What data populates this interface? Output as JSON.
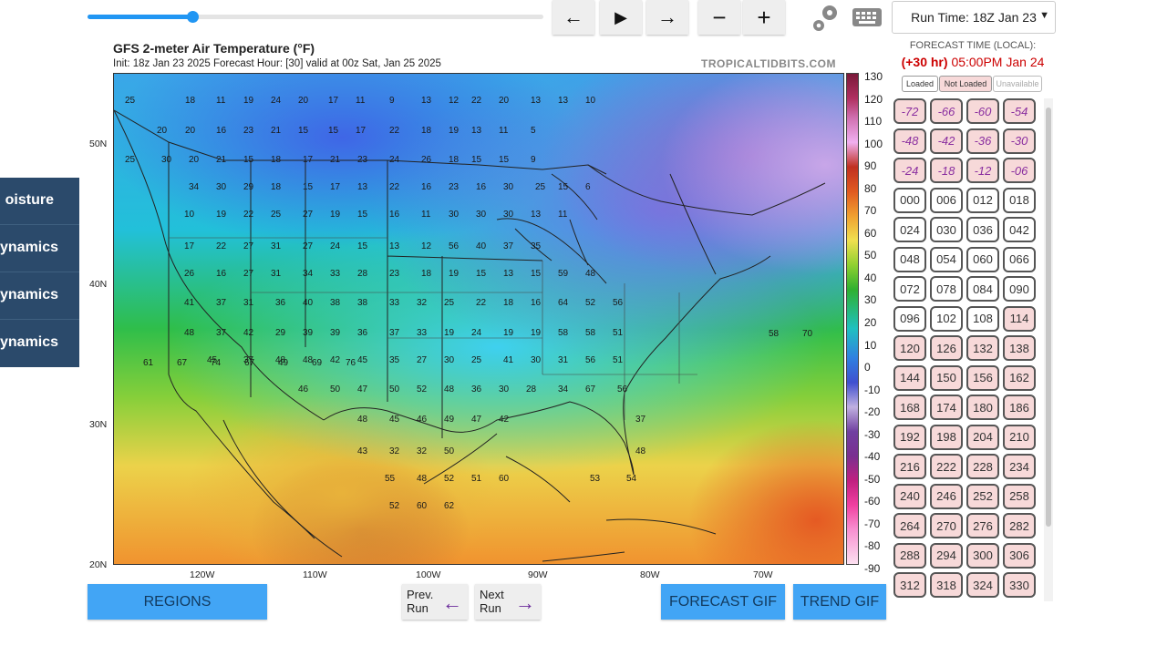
{
  "controls": {
    "slider_value": 0.23,
    "back_icon": "←",
    "play_icon": "▶",
    "forward_icon": "→",
    "zoom_out": "−",
    "zoom_in": "+",
    "run_time": "Run Time: 18Z Jan 23"
  },
  "left_menu": [
    "oisture",
    "ynamics",
    "ynamics",
    "ynamics"
  ],
  "map": {
    "title": "GFS 2-meter Air Temperature (°F)",
    "subtitle": "Init: 18z Jan 23 2025   Forecast Hour: [30]   valid at 00z Sat, Jan 25 2025",
    "brand": "TROPICALTIDBITS.COM",
    "lat_labels": [
      "50N",
      "40N",
      "30N",
      "20N"
    ],
    "lon_labels": [
      "120W",
      "110W",
      "100W",
      "90W",
      "80W",
      "70W"
    ],
    "colorbar_labels": [
      "130",
      "120",
      "110",
      "100",
      "90",
      "80",
      "70",
      "60",
      "50",
      "40",
      "30",
      "20",
      "10",
      "0",
      "-10",
      "-20",
      "-30",
      "-40",
      "-50",
      "-60",
      "-70",
      "-80",
      "-90"
    ],
    "values": [
      "25",
      "18",
      "11",
      "19",
      "24",
      "20",
      "17",
      "11",
      "9",
      "13",
      "12",
      "22",
      "20",
      "13",
      "13",
      "10",
      "20",
      "20",
      "16",
      "23",
      "21",
      "15",
      "15",
      "17",
      "22",
      "18",
      "19",
      "13",
      "11",
      "5",
      "25",
      "30",
      "20",
      "21",
      "15",
      "18",
      "17",
      "21",
      "23",
      "24",
      "26",
      "18",
      "15",
      "15",
      "9",
      "34",
      "30",
      "29",
      "18",
      "15",
      "17",
      "13",
      "22",
      "16",
      "23",
      "16",
      "30",
      "25",
      "15",
      "6",
      "10",
      "19",
      "22",
      "25",
      "27",
      "19",
      "15",
      "16",
      "11",
      "30",
      "30",
      "30",
      "13",
      "11",
      "17",
      "22",
      "27",
      "31",
      "27",
      "24",
      "15",
      "13",
      "12",
      "56",
      "40",
      "37",
      "35",
      "26",
      "16",
      "27",
      "31",
      "34",
      "33",
      "28",
      "23",
      "18",
      "19",
      "15",
      "13",
      "15",
      "59",
      "48",
      "41",
      "37",
      "31",
      "36",
      "40",
      "38",
      "38",
      "33",
      "32",
      "25",
      "22",
      "18",
      "16",
      "64",
      "52",
      "56",
      "48",
      "37",
      "42",
      "29",
      "39",
      "39",
      "36",
      "37",
      "33",
      "19",
      "24",
      "19",
      "19",
      "58",
      "58",
      "51",
      "45",
      "37",
      "48",
      "48",
      "42",
      "45",
      "35",
      "27",
      "30",
      "25",
      "41",
      "30",
      "31",
      "56",
      "51",
      "46",
      "50",
      "47",
      "50",
      "52",
      "48",
      "36",
      "30",
      "28",
      "34",
      "67",
      "56",
      "48",
      "45",
      "46",
      "49",
      "47",
      "42",
      "37",
      "43",
      "32",
      "32",
      "50",
      "48",
      "55",
      "48",
      "52",
      "51",
      "60",
      "53",
      "54",
      "52",
      "60",
      "62",
      "58",
      "70",
      "61",
      "67",
      "74",
      "67",
      "49",
      "69",
      "76"
    ]
  },
  "bottom": {
    "regions": "REGIONS",
    "prev_run": [
      "Prev.",
      "Run"
    ],
    "next_run": [
      "Next",
      "Run"
    ],
    "prev_arrow": "←",
    "next_arrow": "→",
    "forecast_gif": "FORECAST GIF",
    "trend_gif": "TREND GIF"
  },
  "forecast": {
    "header": "FORECAST TIME (LOCAL):",
    "offset": "(+30 hr)",
    "time": "05:00PM Jan 24",
    "legend": [
      "Loaded",
      "Not Loaded",
      "Unavailable"
    ],
    "hours": [
      "-72",
      "-66",
      "-60",
      "-54",
      "-48",
      "-42",
      "-36",
      "-30",
      "-24",
      "-18",
      "-12",
      "-06",
      "000",
      "006",
      "012",
      "018",
      "024",
      "030",
      "036",
      "042",
      "048",
      "054",
      "060",
      "066",
      "072",
      "078",
      "084",
      "090",
      "096",
      "102",
      "108",
      "114",
      "120",
      "126",
      "132",
      "138",
      "144",
      "150",
      "156",
      "162",
      "168",
      "174",
      "180",
      "186",
      "192",
      "198",
      "204",
      "210",
      "216",
      "222",
      "228",
      "234",
      "240",
      "246",
      "252",
      "258",
      "264",
      "270",
      "276",
      "282",
      "288",
      "294",
      "300",
      "306",
      "312",
      "318",
      "324",
      "330"
    ],
    "not_loaded_from": "114"
  }
}
